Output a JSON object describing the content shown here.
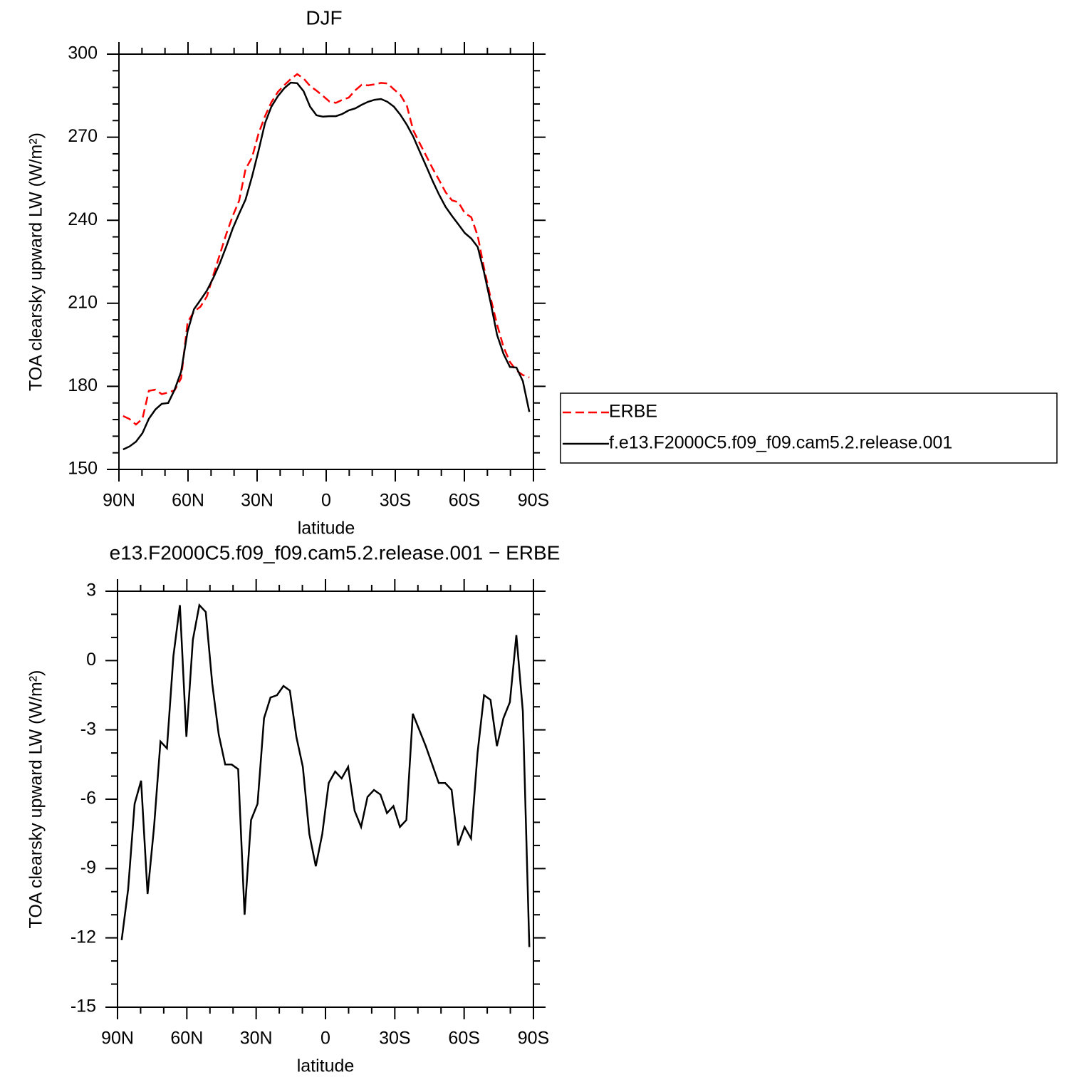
{
  "chart_data": [
    {
      "type": "line",
      "title": "DJF",
      "xlabel": "latitude",
      "ylabel": "TOA clearsky upward LW (W/m²)",
      "x": [
        88.2,
        85.4,
        82.6,
        79.8,
        77.0,
        74.2,
        71.4,
        68.6,
        65.8,
        63.0,
        60.2,
        57.4,
        54.6,
        51.8,
        49.0,
        46.2,
        43.4,
        40.6,
        37.8,
        35.0,
        32.2,
        29.4,
        26.6,
        23.8,
        21.0,
        18.2,
        15.4,
        12.6,
        9.8,
        7.0,
        4.2,
        1.4,
        -1.4,
        -4.2,
        -7.0,
        -9.8,
        -12.6,
        -15.4,
        -18.2,
        -21.0,
        -23.8,
        -26.6,
        -29.4,
        -32.2,
        -35.0,
        -37.8,
        -40.6,
        -43.4,
        -46.2,
        -49.0,
        -51.8,
        -54.6,
        -57.4,
        -60.2,
        -63.0,
        -65.8,
        -68.6,
        -71.4,
        -74.2,
        -77.0,
        -79.8,
        -82.6,
        -85.4,
        -88.2
      ],
      "series": [
        {
          "name": "ERBE",
          "color": "#ff0000",
          "style": "dashed",
          "values": [
            169.3,
            168.2,
            166.2,
            168.3,
            178.4,
            178.8,
            177.2,
            177.8,
            178.6,
            182.9,
            203.2,
            207.0,
            208.8,
            212.5,
            220.2,
            227.6,
            235.0,
            241.5,
            247.1,
            258.5,
            262.7,
            271.2,
            277.5,
            282.6,
            286.3,
            288.8,
            291.0,
            292.8,
            291.2,
            288.5,
            286.8,
            284.9,
            282.9,
            282.4,
            283.5,
            284.3,
            286.9,
            288.9,
            288.7,
            289.1,
            289.6,
            289.4,
            287.3,
            285.3,
            281.4,
            272.5,
            267.8,
            263.3,
            258.7,
            254.6,
            250.2,
            247.2,
            246.5,
            242.6,
            241.1,
            234.3,
            222.5,
            211.9,
            202.3,
            194.2,
            188.8,
            185.7,
            184.1,
            183.2
          ]
        },
        {
          "name": "f.e13.F2000C5.f09_f09.cam5.2.release.001",
          "color": "#000000",
          "style": "solid",
          "values": [
            157.2,
            158.3,
            160.0,
            163.1,
            168.3,
            171.6,
            173.7,
            174.0,
            178.8,
            185.3,
            199.9,
            207.9,
            211.2,
            214.6,
            219.2,
            224.4,
            230.5,
            237.0,
            242.4,
            247.5,
            255.8,
            265.0,
            275.0,
            281.0,
            284.8,
            287.7,
            289.7,
            289.5,
            286.6,
            281.0,
            277.9,
            277.4,
            277.6,
            277.6,
            278.4,
            279.7,
            280.4,
            281.7,
            282.8,
            283.5,
            283.8,
            282.8,
            281.0,
            278.1,
            274.5,
            270.2,
            264.8,
            259.6,
            254.2,
            249.3,
            244.9,
            241.6,
            238.5,
            235.4,
            233.4,
            230.3,
            221.0,
            210.2,
            198.6,
            191.7,
            187.0,
            186.8,
            181.9,
            170.8
          ]
        }
      ],
      "xlim": [
        90,
        -90
      ],
      "xticks": [
        {
          "value": 90,
          "label": "90N"
        },
        {
          "value": 60,
          "label": "60N"
        },
        {
          "value": 30,
          "label": "30N"
        },
        0,
        {
          "value": -30,
          "label": "30S"
        },
        {
          "value": -60,
          "label": "60S"
        },
        {
          "value": -90,
          "label": "90S"
        }
      ],
      "ylim": [
        150,
        300
      ],
      "yticks": [
        150,
        180,
        210,
        240,
        270,
        300
      ],
      "legend": "right"
    },
    {
      "type": "line",
      "title": "e13.F2000C5.f09_f09.cam5.2.release.001 − ERBE",
      "xlabel": "latitude",
      "ylabel": "TOA clearsky upward LW (W/m²)",
      "x": [
        88.2,
        85.4,
        82.6,
        79.8,
        77.0,
        74.2,
        71.4,
        68.6,
        65.8,
        63.0,
        60.2,
        57.4,
        54.6,
        51.8,
        49.0,
        46.2,
        43.4,
        40.6,
        37.8,
        35.0,
        32.2,
        29.4,
        26.6,
        23.8,
        21.0,
        18.2,
        15.4,
        12.6,
        9.8,
        7.0,
        4.2,
        1.4,
        -1.4,
        -4.2,
        -7.0,
        -9.8,
        -12.6,
        -15.4,
        -18.2,
        -21.0,
        -23.8,
        -26.6,
        -29.4,
        -32.2,
        -35.0,
        -37.8,
        -40.6,
        -43.4,
        -46.2,
        -49.0,
        -51.8,
        -54.6,
        -57.4,
        -60.2,
        -63.0,
        -65.8,
        -68.6,
        -71.4,
        -74.2,
        -77.0,
        -79.8,
        -82.6,
        -85.4,
        -88.2
      ],
      "series": [
        {
          "color": "#000000",
          "style": "solid",
          "values": [
            -12.1,
            -9.9,
            -6.2,
            -5.2,
            -10.1,
            -7.2,
            -3.5,
            -3.8,
            0.2,
            2.4,
            -3.3,
            0.9,
            2.4,
            2.1,
            -1.0,
            -3.2,
            -4.5,
            -4.5,
            -4.7,
            -11.0,
            -6.9,
            -6.2,
            -2.5,
            -1.6,
            -1.5,
            -1.1,
            -1.3,
            -3.3,
            -4.6,
            -7.5,
            -8.9,
            -7.5,
            -5.3,
            -4.8,
            -5.1,
            -4.6,
            -6.5,
            -7.2,
            -5.9,
            -5.6,
            -5.8,
            -6.6,
            -6.3,
            -7.2,
            -6.9,
            -2.3,
            -3.0,
            -3.7,
            -4.5,
            -5.3,
            -5.3,
            -5.6,
            -8.0,
            -7.2,
            -7.7,
            -4.0,
            -1.5,
            -1.7,
            -3.7,
            -2.5,
            -1.8,
            1.1,
            -2.2,
            -12.4
          ]
        }
      ],
      "xlim": [
        90,
        -90
      ],
      "xticks": [
        {
          "value": 90,
          "label": "90N"
        },
        {
          "value": 60,
          "label": "60N"
        },
        {
          "value": 30,
          "label": "30N"
        },
        0,
        {
          "value": -30,
          "label": "30S"
        },
        {
          "value": -60,
          "label": "60S"
        },
        {
          "value": -90,
          "label": "90S"
        }
      ],
      "ylim": [
        -15,
        3
      ],
      "yticks": [
        -15,
        -12,
        -9,
        -6,
        -3,
        0,
        3
      ]
    }
  ]
}
